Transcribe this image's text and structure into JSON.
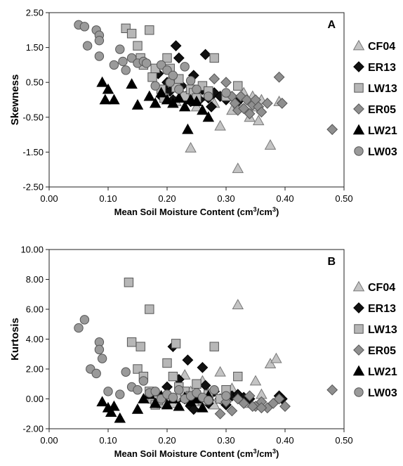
{
  "colors": {
    "CF04": "#c4c4c4",
    "ER13": "#111111",
    "LW13": "#b7b7b7",
    "ER05": "#8f8f8f",
    "LW21": "#000000",
    "LW03": "#9a9a9a",
    "axis": "#222222"
  },
  "legend": [
    {
      "name": "CF04",
      "marker": "triangle-open"
    },
    {
      "name": "ER13",
      "marker": "diamond"
    },
    {
      "name": "LW13",
      "marker": "square"
    },
    {
      "name": "ER05",
      "marker": "diamond"
    },
    {
      "name": "LW21",
      "marker": "triangle"
    },
    {
      "name": "LW03",
      "marker": "circle"
    }
  ],
  "chart_data": [
    {
      "type": "scatter",
      "panel_label": "A",
      "xlabel": "Mean Soil Moisture Content (cm",
      "xlabel_sup1": "3",
      "xlabel_mid": "/cm",
      "xlabel_sup2": "3",
      "xlabel_end": ")",
      "ylabel": "Skewness",
      "xlim": [
        0.0,
        0.5
      ],
      "ylim": [
        -2.5,
        2.5
      ],
      "x_ticks": [
        "0.00",
        "0.10",
        "0.20",
        "0.30",
        "0.40",
        "0.50"
      ],
      "y_ticks": [
        "2.50",
        "1.50",
        "0.50",
        "-0.50",
        "-1.50",
        "-2.50"
      ],
      "series": [
        {
          "name": "CF04",
          "points": [
            [
              0.205,
              0.55
            ],
            [
              0.215,
              -0.05
            ],
            [
              0.225,
              0.2
            ],
            [
              0.24,
              -1.38
            ],
            [
              0.25,
              -0.2
            ],
            [
              0.26,
              0.1
            ],
            [
              0.27,
              0.15
            ],
            [
              0.28,
              -0.1
            ],
            [
              0.29,
              -0.75
            ],
            [
              0.3,
              0.1
            ],
            [
              0.31,
              -0.3
            ],
            [
              0.32,
              -0.05
            ],
            [
              0.32,
              -1.97
            ],
            [
              0.33,
              0.2
            ],
            [
              0.34,
              -0.5
            ],
            [
              0.345,
              0.1
            ],
            [
              0.35,
              -0.2
            ],
            [
              0.355,
              -0.6
            ],
            [
              0.36,
              0.0
            ],
            [
              0.375,
              -1.3
            ],
            [
              0.39,
              -0.05
            ]
          ]
        },
        {
          "name": "ER13",
          "points": [
            [
              0.185,
              0.75
            ],
            [
              0.19,
              0.1
            ],
            [
              0.195,
              0.3
            ],
            [
              0.2,
              0.5
            ],
            [
              0.205,
              0.25
            ],
            [
              0.21,
              0.0
            ],
            [
              0.215,
              1.55
            ],
            [
              0.22,
              1.2
            ],
            [
              0.225,
              0.4
            ],
            [
              0.23,
              0.05
            ],
            [
              0.235,
              0.15
            ],
            [
              0.24,
              -0.05
            ],
            [
              0.245,
              0.7
            ],
            [
              0.25,
              0.25
            ],
            [
              0.255,
              0.0
            ],
            [
              0.26,
              0.3
            ],
            [
              0.265,
              1.3
            ],
            [
              0.27,
              0.05
            ],
            [
              0.275,
              -0.2
            ],
            [
              0.28,
              0.2
            ],
            [
              0.29,
              0.1
            ],
            [
              0.3,
              0.0
            ],
            [
              0.32,
              -0.05
            ]
          ]
        },
        {
          "name": "LW13",
          "points": [
            [
              0.13,
              2.05
            ],
            [
              0.14,
              1.9
            ],
            [
              0.15,
              1.55
            ],
            [
              0.155,
              1.2
            ],
            [
              0.16,
              1.0
            ],
            [
              0.17,
              2.0
            ],
            [
              0.175,
              0.65
            ],
            [
              0.18,
              0.9
            ],
            [
              0.19,
              0.3
            ],
            [
              0.195,
              0.05
            ],
            [
              0.2,
              1.2
            ],
            [
              0.205,
              0.9
            ],
            [
              0.21,
              0.55
            ],
            [
              0.215,
              0.35
            ],
            [
              0.22,
              0.6
            ],
            [
              0.23,
              0.1
            ],
            [
              0.24,
              0.3
            ],
            [
              0.245,
              0.2
            ],
            [
              0.25,
              0.05
            ],
            [
              0.26,
              0.4
            ],
            [
              0.27,
              0.25
            ],
            [
              0.28,
              1.2
            ],
            [
              0.3,
              0.1
            ],
            [
              0.32,
              0.4
            ]
          ]
        },
        {
          "name": "ER05",
          "points": [
            [
              0.28,
              0.6
            ],
            [
              0.3,
              0.5
            ],
            [
              0.31,
              0.1
            ],
            [
              0.315,
              -0.1
            ],
            [
              0.32,
              -0.3
            ],
            [
              0.325,
              0.1
            ],
            [
              0.33,
              -0.25
            ],
            [
              0.335,
              0.0
            ],
            [
              0.34,
              -0.4
            ],
            [
              0.345,
              -0.15
            ],
            [
              0.35,
              0.0
            ],
            [
              0.355,
              -0.2
            ],
            [
              0.36,
              -0.35
            ],
            [
              0.37,
              -0.1
            ],
            [
              0.39,
              0.65
            ],
            [
              0.395,
              -0.1
            ],
            [
              0.48,
              -0.85
            ]
          ]
        },
        {
          "name": "LW21",
          "points": [
            [
              0.09,
              0.5
            ],
            [
              0.095,
              0.0
            ],
            [
              0.1,
              0.3
            ],
            [
              0.11,
              0.0
            ],
            [
              0.14,
              0.45
            ],
            [
              0.15,
              -0.15
            ],
            [
              0.17,
              0.1
            ],
            [
              0.18,
              -0.1
            ],
            [
              0.19,
              0.2
            ],
            [
              0.2,
              0.0
            ],
            [
              0.21,
              -0.1
            ],
            [
              0.22,
              0.05
            ],
            [
              0.23,
              -0.2
            ],
            [
              0.24,
              0.0
            ],
            [
              0.25,
              -0.05
            ],
            [
              0.26,
              -0.3
            ],
            [
              0.27,
              -0.5
            ],
            [
              0.235,
              -0.85
            ]
          ]
        },
        {
          "name": "LW03",
          "points": [
            [
              0.05,
              2.15
            ],
            [
              0.06,
              2.1
            ],
            [
              0.065,
              1.55
            ],
            [
              0.08,
              2.0
            ],
            [
              0.085,
              1.85
            ],
            [
              0.085,
              1.25
            ],
            [
              0.085,
              1.7
            ],
            [
              0.11,
              1.0
            ],
            [
              0.12,
              1.45
            ],
            [
              0.125,
              1.1
            ],
            [
              0.13,
              0.85
            ],
            [
              0.14,
              1.2
            ],
            [
              0.15,
              1.05
            ],
            [
              0.16,
              1.1
            ],
            [
              0.165,
              1.05
            ],
            [
              0.18,
              0.4
            ],
            [
              0.19,
              1.0
            ],
            [
              0.2,
              0.85
            ],
            [
              0.205,
              0.5
            ],
            [
              0.21,
              0.7
            ],
            [
              0.22,
              0.3
            ],
            [
              0.23,
              0.95
            ],
            [
              0.24,
              0.55
            ],
            [
              0.25,
              0.3
            ],
            [
              0.27,
              0.1
            ],
            [
              0.3,
              0.2
            ]
          ]
        }
      ]
    },
    {
      "type": "scatter",
      "panel_label": "B",
      "xlabel": "Mean Soil Moisture Content (cm",
      "xlabel_sup1": "3",
      "xlabel_mid": "/cm",
      "xlabel_sup2": "3",
      "xlabel_end": ")",
      "ylabel": "Kurtosis",
      "xlim": [
        0.0,
        0.5
      ],
      "ylim": [
        -2.0,
        10.0
      ],
      "x_ticks": [
        "0.00",
        "0.10",
        "0.20",
        "0.30",
        "0.40",
        "0.50"
      ],
      "y_ticks": [
        "10.00",
        "8.00",
        "6.00",
        "4.00",
        "2.00",
        "0.00",
        "-2.00"
      ],
      "series": [
        {
          "name": "CF04",
          "points": [
            [
              0.2,
              0.0
            ],
            [
              0.21,
              -0.3
            ],
            [
              0.22,
              0.2
            ],
            [
              0.23,
              1.6
            ],
            [
              0.24,
              0.5
            ],
            [
              0.25,
              -0.2
            ],
            [
              0.26,
              1.2
            ],
            [
              0.27,
              0.4
            ],
            [
              0.28,
              -0.4
            ],
            [
              0.29,
              1.8
            ],
            [
              0.3,
              0.2
            ],
            [
              0.31,
              0.7
            ],
            [
              0.32,
              6.3
            ],
            [
              0.33,
              0.0
            ],
            [
              0.34,
              -0.3
            ],
            [
              0.35,
              1.2
            ],
            [
              0.36,
              0.3
            ],
            [
              0.375,
              2.35
            ],
            [
              0.385,
              2.7
            ]
          ]
        },
        {
          "name": "ER13",
          "points": [
            [
              0.18,
              -0.2
            ],
            [
              0.19,
              0.1
            ],
            [
              0.2,
              0.8
            ],
            [
              0.21,
              3.5
            ],
            [
              0.22,
              1.3
            ],
            [
              0.23,
              0.0
            ],
            [
              0.235,
              2.6
            ],
            [
              0.24,
              -0.5
            ],
            [
              0.25,
              0.3
            ],
            [
              0.26,
              2.1
            ],
            [
              0.27,
              -0.3
            ],
            [
              0.28,
              0.5
            ],
            [
              0.29,
              0.0
            ],
            [
              0.3,
              -0.4
            ],
            [
              0.31,
              0.2
            ],
            [
              0.32,
              0.3
            ],
            [
              0.33,
              0.1
            ],
            [
              0.34,
              0.0
            ],
            [
              0.39,
              0.2
            ],
            [
              0.395,
              0.0
            ],
            [
              0.245,
              -0.7
            ],
            [
              0.265,
              0.9
            ]
          ]
        },
        {
          "name": "LW13",
          "points": [
            [
              0.135,
              7.8
            ],
            [
              0.14,
              3.8
            ],
            [
              0.15,
              2.0
            ],
            [
              0.155,
              3.5
            ],
            [
              0.16,
              1.5
            ],
            [
              0.17,
              6.0
            ],
            [
              0.175,
              0.0
            ],
            [
              0.18,
              -0.4
            ],
            [
              0.19,
              -0.3
            ],
            [
              0.2,
              2.4
            ],
            [
              0.21,
              1.5
            ],
            [
              0.215,
              3.7
            ],
            [
              0.22,
              0.8
            ],
            [
              0.23,
              0.5
            ],
            [
              0.24,
              0.2
            ],
            [
              0.25,
              1.0
            ],
            [
              0.26,
              -0.1
            ],
            [
              0.27,
              0.3
            ],
            [
              0.28,
              3.5
            ],
            [
              0.29,
              0.0
            ],
            [
              0.3,
              0.6
            ],
            [
              0.32,
              1.5
            ],
            [
              0.17,
              0.5
            ],
            [
              0.185,
              -0.1
            ]
          ]
        },
        {
          "name": "ER05",
          "points": [
            [
              0.29,
              -1.0
            ],
            [
              0.3,
              -0.2
            ],
            [
              0.31,
              -0.8
            ],
            [
              0.32,
              0.0
            ],
            [
              0.33,
              -0.3
            ],
            [
              0.34,
              0.2
            ],
            [
              0.35,
              -0.5
            ],
            [
              0.36,
              -0.2
            ],
            [
              0.37,
              -0.6
            ],
            [
              0.38,
              -0.3
            ],
            [
              0.39,
              0.0
            ],
            [
              0.4,
              -0.5
            ],
            [
              0.48,
              0.6
            ],
            [
              0.36,
              -0.6
            ],
            [
              0.345,
              -0.5
            ]
          ]
        },
        {
          "name": "LW21",
          "points": [
            [
              0.09,
              -0.2
            ],
            [
              0.1,
              -0.6
            ],
            [
              0.105,
              -0.9
            ],
            [
              0.11,
              -0.5
            ],
            [
              0.12,
              -1.3
            ],
            [
              0.15,
              -0.7
            ],
            [
              0.16,
              0.0
            ],
            [
              0.17,
              0.3
            ],
            [
              0.18,
              -0.3
            ],
            [
              0.19,
              0.2
            ],
            [
              0.2,
              -0.4
            ],
            [
              0.21,
              0.0
            ],
            [
              0.22,
              -0.5
            ],
            [
              0.23,
              0.1
            ],
            [
              0.24,
              -0.2
            ],
            [
              0.25,
              0.0
            ],
            [
              0.26,
              -0.6
            ],
            [
              0.27,
              0.2
            ]
          ]
        },
        {
          "name": "LW03",
          "points": [
            [
              0.05,
              4.75
            ],
            [
              0.06,
              5.3
            ],
            [
              0.07,
              2.0
            ],
            [
              0.08,
              1.7
            ],
            [
              0.085,
              3.8
            ],
            [
              0.085,
              3.3
            ],
            [
              0.09,
              2.7
            ],
            [
              0.1,
              0.5
            ],
            [
              0.12,
              0.3
            ],
            [
              0.13,
              1.8
            ],
            [
              0.14,
              0.8
            ],
            [
              0.15,
              0.6
            ],
            [
              0.16,
              1.2
            ],
            [
              0.17,
              0.4
            ],
            [
              0.18,
              0.5
            ],
            [
              0.19,
              0.0
            ],
            [
              0.2,
              0.3
            ],
            [
              0.21,
              0.1
            ],
            [
              0.22,
              0.6
            ],
            [
              0.23,
              0.0
            ],
            [
              0.24,
              0.2
            ],
            [
              0.25,
              0.4
            ],
            [
              0.26,
              0.1
            ],
            [
              0.27,
              -0.1
            ],
            [
              0.28,
              0.6
            ],
            [
              0.3,
              0.2
            ]
          ]
        }
      ]
    }
  ]
}
